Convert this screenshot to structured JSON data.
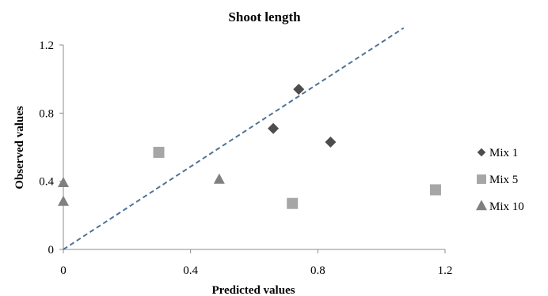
{
  "chart_data": {
    "type": "scatter",
    "title": "Shoot length",
    "xlabel": "Predicted values",
    "ylabel": "Observed values",
    "xlim": [
      0,
      1.2
    ],
    "ylim": [
      0,
      1.2
    ],
    "x_ticks": [
      "0",
      "0.4",
      "0.8",
      "1.2"
    ],
    "y_ticks": [
      "0",
      "0.4",
      "0.8",
      "1.2"
    ],
    "grid": false,
    "legend_position": "right",
    "reference_line": {
      "style": "dashed",
      "from": [
        0,
        0
      ],
      "to": [
        1.07,
        1.3
      ],
      "color": "#4f7396"
    },
    "series": [
      {
        "name": "Mix 1",
        "marker": "diamond",
        "color": "#4d4d4d",
        "points": [
          [
            0.66,
            0.71
          ],
          [
            0.74,
            0.94
          ],
          [
            0.84,
            0.63
          ]
        ]
      },
      {
        "name": "Mix 5",
        "marker": "square",
        "color": "#a6a6a6",
        "points": [
          [
            0.3,
            0.57
          ],
          [
            0.72,
            0.27
          ],
          [
            1.17,
            0.35
          ]
        ]
      },
      {
        "name": "Mix 10",
        "marker": "triangle",
        "color": "#808080",
        "points": [
          [
            0.0,
            0.39
          ],
          [
            0.0,
            0.28
          ],
          [
            0.49,
            0.41
          ]
        ]
      }
    ]
  }
}
